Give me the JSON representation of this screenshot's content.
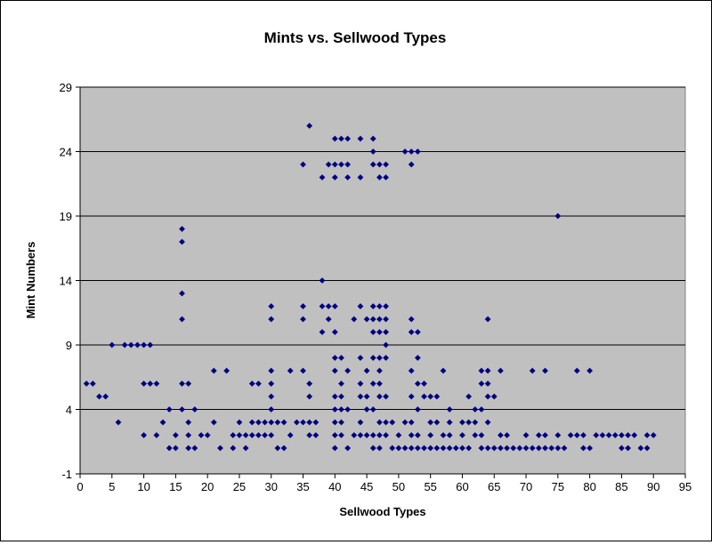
{
  "chart_data": {
    "type": "scatter",
    "title": "Mints vs. Sellwood Types",
    "xlabel": "Sellwood Types",
    "ylabel": "Mint Numbers",
    "xlim": [
      0,
      95
    ],
    "ylim": [
      -1,
      29
    ],
    "xticks": [
      0,
      5,
      10,
      15,
      20,
      25,
      30,
      35,
      40,
      45,
      50,
      55,
      60,
      65,
      70,
      75,
      80,
      85,
      90,
      95
    ],
    "yticks": [
      -1,
      4,
      9,
      14,
      19,
      24,
      29
    ],
    "grid": "horizontal",
    "legend": "none",
    "colors": {
      "plot_bg": "#c0c0c0",
      "marker": "#000080",
      "grid": "#000000"
    },
    "points": [
      [
        1,
        6
      ],
      [
        2,
        6
      ],
      [
        3,
        5
      ],
      [
        4,
        5
      ],
      [
        5,
        9
      ],
      [
        6,
        3
      ],
      [
        7,
        9
      ],
      [
        8,
        9
      ],
      [
        9,
        9
      ],
      [
        10,
        9
      ],
      [
        11,
        9
      ],
      [
        10,
        6
      ],
      [
        11,
        6
      ],
      [
        12,
        6
      ],
      [
        10,
        2
      ],
      [
        12,
        2
      ],
      [
        13,
        3
      ],
      [
        14,
        1
      ],
      [
        15,
        1
      ],
      [
        14,
        4
      ],
      [
        15,
        2
      ],
      [
        16,
        4
      ],
      [
        16,
        18
      ],
      [
        16,
        17
      ],
      [
        16,
        13
      ],
      [
        16,
        11
      ],
      [
        16,
        6
      ],
      [
        17,
        6
      ],
      [
        17,
        3
      ],
      [
        17,
        2
      ],
      [
        18,
        4
      ],
      [
        17,
        1
      ],
      [
        18,
        1
      ],
      [
        19,
        2
      ],
      [
        20,
        2
      ],
      [
        21,
        7
      ],
      [
        21,
        3
      ],
      [
        23,
        7
      ],
      [
        22,
        1
      ],
      [
        24,
        2
      ],
      [
        24,
        1
      ],
      [
        25,
        3
      ],
      [
        25,
        2
      ],
      [
        26,
        2
      ],
      [
        26,
        1
      ],
      [
        27,
        6
      ],
      [
        28,
        6
      ],
      [
        27,
        3
      ],
      [
        28,
        3
      ],
      [
        29,
        3
      ],
      [
        30,
        3
      ],
      [
        27,
        2
      ],
      [
        28,
        2
      ],
      [
        29,
        2
      ],
      [
        30,
        2
      ],
      [
        31,
        3
      ],
      [
        32,
        3
      ],
      [
        30,
        12
      ],
      [
        30,
        11
      ],
      [
        30,
        7
      ],
      [
        30,
        6
      ],
      [
        30,
        5
      ],
      [
        30,
        4
      ],
      [
        31,
        1
      ],
      [
        32,
        1
      ],
      [
        33,
        7
      ],
      [
        33,
        2
      ],
      [
        34,
        3
      ],
      [
        35,
        3
      ],
      [
        35,
        7
      ],
      [
        35,
        12
      ],
      [
        35,
        11
      ],
      [
        35,
        23
      ],
      [
        36,
        26
      ],
      [
        36,
        5
      ],
      [
        36,
        6
      ],
      [
        36,
        3
      ],
      [
        37,
        3
      ],
      [
        36,
        2
      ],
      [
        37,
        2
      ],
      [
        38,
        14
      ],
      [
        38,
        12
      ],
      [
        38,
        10
      ],
      [
        38,
        22
      ],
      [
        39,
        23
      ],
      [
        39,
        12
      ],
      [
        39,
        11
      ],
      [
        40,
        25
      ],
      [
        40,
        23
      ],
      [
        40,
        22
      ],
      [
        40,
        12
      ],
      [
        40,
        10
      ],
      [
        40,
        8
      ],
      [
        40,
        7
      ],
      [
        40,
        5
      ],
      [
        40,
        4
      ],
      [
        40,
        3
      ],
      [
        40,
        2
      ],
      [
        40,
        1
      ],
      [
        41,
        25
      ],
      [
        41,
        23
      ],
      [
        42,
        25
      ],
      [
        42,
        23
      ],
      [
        42,
        22
      ],
      [
        41,
        8
      ],
      [
        41,
        6
      ],
      [
        41,
        5
      ],
      [
        41,
        4
      ],
      [
        41,
        3
      ],
      [
        41,
        2
      ],
      [
        42,
        7
      ],
      [
        42,
        4
      ],
      [
        42,
        1
      ],
      [
        43,
        11
      ],
      [
        43,
        2
      ],
      [
        44,
        25
      ],
      [
        44,
        22
      ],
      [
        44,
        12
      ],
      [
        44,
        8
      ],
      [
        44,
        6
      ],
      [
        44,
        5
      ],
      [
        44,
        3
      ],
      [
        44,
        2
      ],
      [
        45,
        11
      ],
      [
        45,
        7
      ],
      [
        45,
        5
      ],
      [
        45,
        4
      ],
      [
        45,
        2
      ],
      [
        46,
        25
      ],
      [
        46,
        24
      ],
      [
        46,
        23
      ],
      [
        46,
        12
      ],
      [
        46,
        11
      ],
      [
        46,
        10
      ],
      [
        46,
        8
      ],
      [
        46,
        6
      ],
      [
        46,
        4
      ],
      [
        46,
        2
      ],
      [
        46,
        1
      ],
      [
        47,
        23
      ],
      [
        47,
        22
      ],
      [
        47,
        12
      ],
      [
        47,
        11
      ],
      [
        47,
        10
      ],
      [
        47,
        8
      ],
      [
        47,
        7
      ],
      [
        47,
        6
      ],
      [
        47,
        5
      ],
      [
        47,
        3
      ],
      [
        47,
        2
      ],
      [
        47,
        1
      ],
      [
        48,
        23
      ],
      [
        48,
        22
      ],
      [
        48,
        12
      ],
      [
        48,
        11
      ],
      [
        48,
        10
      ],
      [
        48,
        9
      ],
      [
        48,
        8
      ],
      [
        48,
        5
      ],
      [
        48,
        3
      ],
      [
        48,
        2
      ],
      [
        49,
        3
      ],
      [
        49,
        1
      ],
      [
        50,
        2
      ],
      [
        50,
        1
      ],
      [
        51,
        3
      ],
      [
        51,
        1
      ],
      [
        51,
        24
      ],
      [
        52,
        24
      ],
      [
        52,
        23
      ],
      [
        53,
        24
      ],
      [
        52,
        11
      ],
      [
        52,
        10
      ],
      [
        52,
        7
      ],
      [
        52,
        5
      ],
      [
        52,
        3
      ],
      [
        52,
        2
      ],
      [
        52,
        1
      ],
      [
        53,
        10
      ],
      [
        53,
        8
      ],
      [
        53,
        6
      ],
      [
        53,
        4
      ],
      [
        53,
        2
      ],
      [
        53,
        1
      ],
      [
        54,
        6
      ],
      [
        54,
        5
      ],
      [
        54,
        1
      ],
      [
        55,
        5
      ],
      [
        55,
        3
      ],
      [
        55,
        2
      ],
      [
        55,
        1
      ],
      [
        56,
        5
      ],
      [
        56,
        3
      ],
      [
        56,
        1
      ],
      [
        57,
        7
      ],
      [
        57,
        2
      ],
      [
        57,
        1
      ],
      [
        58,
        4
      ],
      [
        58,
        3
      ],
      [
        58,
        2
      ],
      [
        58,
        1
      ],
      [
        59,
        1
      ],
      [
        60,
        3
      ],
      [
        60,
        2
      ],
      [
        60,
        1
      ],
      [
        61,
        5
      ],
      [
        61,
        3
      ],
      [
        61,
        1
      ],
      [
        62,
        4
      ],
      [
        62,
        3
      ],
      [
        62,
        2
      ],
      [
        63,
        7
      ],
      [
        63,
        6
      ],
      [
        63,
        4
      ],
      [
        63,
        2
      ],
      [
        63,
        1
      ],
      [
        64,
        11
      ],
      [
        64,
        7
      ],
      [
        64,
        6
      ],
      [
        64,
        5
      ],
      [
        64,
        3
      ],
      [
        64,
        1
      ],
      [
        65,
        5
      ],
      [
        65,
        1
      ],
      [
        66,
        7
      ],
      [
        66,
        2
      ],
      [
        66,
        1
      ],
      [
        67,
        2
      ],
      [
        67,
        1
      ],
      [
        68,
        1
      ],
      [
        69,
        1
      ],
      [
        70,
        2
      ],
      [
        70,
        1
      ],
      [
        71,
        1
      ],
      [
        71,
        7
      ],
      [
        72,
        2
      ],
      [
        72,
        1
      ],
      [
        73,
        7
      ],
      [
        73,
        2
      ],
      [
        73,
        1
      ],
      [
        74,
        1
      ],
      [
        75,
        19
      ],
      [
        75,
        2
      ],
      [
        75,
        1
      ],
      [
        76,
        1
      ],
      [
        77,
        2
      ],
      [
        78,
        7
      ],
      [
        78,
        2
      ],
      [
        79,
        2
      ],
      [
        79,
        1
      ],
      [
        80,
        7
      ],
      [
        80,
        1
      ],
      [
        81,
        2
      ],
      [
        82,
        2
      ],
      [
        83,
        2
      ],
      [
        84,
        2
      ],
      [
        85,
        2
      ],
      [
        85,
        1
      ],
      [
        86,
        2
      ],
      [
        86,
        1
      ],
      [
        87,
        2
      ],
      [
        88,
        1
      ],
      [
        89,
        1
      ],
      [
        89,
        2
      ],
      [
        90,
        2
      ]
    ]
  }
}
